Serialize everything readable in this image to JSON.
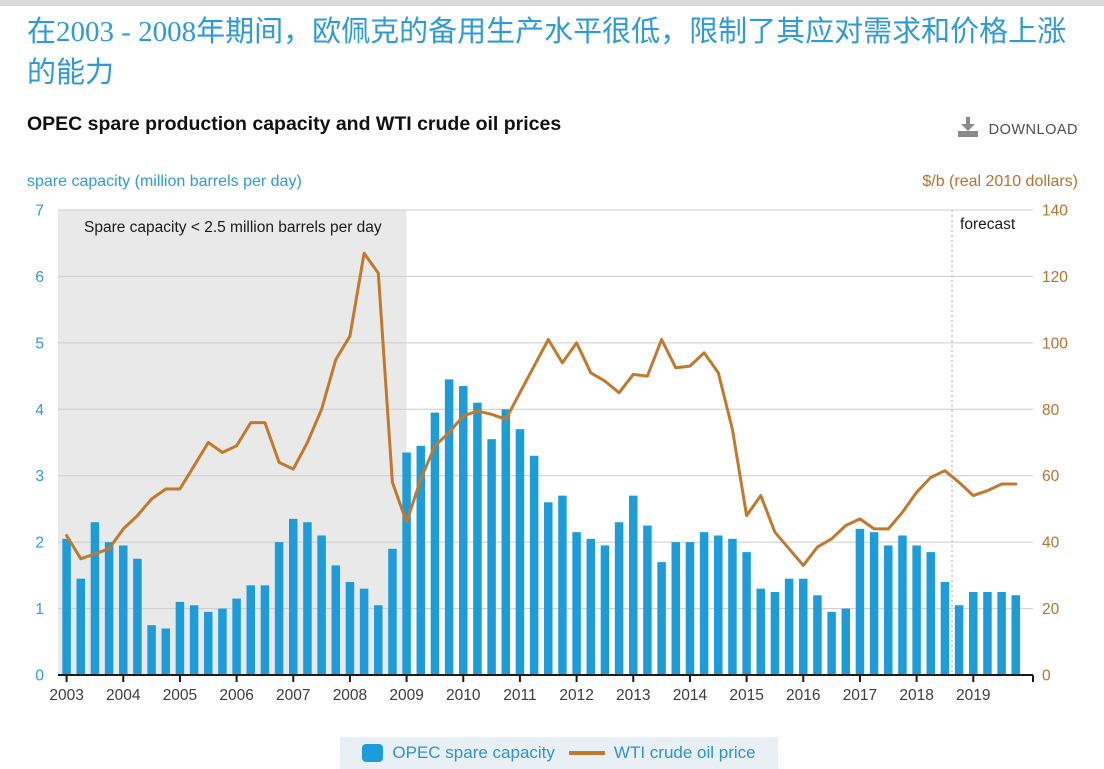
{
  "page": {
    "title_zh": "在2003 - 2008年期间，欧佩克的备用生产水平很低，限制了其应对需求和价格上涨的能力",
    "subtitle": "OPEC spare production capacity and WTI crude oil prices",
    "download_label": "DOWNLOAD"
  },
  "axes": {
    "left_title": "spare capacity (million barrels per day)",
    "right_title": "$/b (real 2010 dollars)",
    "left_ticks": [
      0,
      1,
      2,
      3,
      4,
      5,
      6,
      7
    ],
    "right_ticks": [
      0,
      20,
      40,
      60,
      80,
      100,
      120,
      140
    ]
  },
  "annotations": {
    "shaded_label": "Spare capacity < 2.5 million barrels per day",
    "forecast_label": "forecast"
  },
  "legend": [
    {
      "label": "OPEC spare capacity",
      "swatch": "square",
      "color": "#1c9dd9"
    },
    {
      "label": "WTI crude oil price",
      "swatch": "line",
      "color": "#c17a2d"
    }
  ],
  "colors": {
    "bar": "#1c9dd9",
    "line": "#c17a2d",
    "left_axis_text": "#2e9bd6",
    "right_axis_text": "#b4732e",
    "gridline": "#cccccc",
    "shade": "#e9e9e9",
    "axis": "#1a1a1a",
    "x_labels": "#3d3d3d",
    "forecast_divider": "#aaaaaa",
    "annotation_text": "#1a1a1a"
  },
  "chart_data": {
    "type": "bar",
    "title": "OPEC spare production capacity and WTI crude oil prices",
    "frequency": "quarterly",
    "start": "2003-Q1",
    "end": "2019-Q4",
    "years": [
      "2003",
      "2004",
      "2005",
      "2006",
      "2007",
      "2008",
      "2009",
      "2010",
      "2011",
      "2012",
      "2013",
      "2014",
      "2015",
      "2016",
      "2017",
      "2018",
      "2019"
    ],
    "left_ylim": [
      0,
      7
    ],
    "right_ylim": [
      0,
      140
    ],
    "left_ylabel": "spare capacity (million barrels per day)",
    "right_ylabel": "$/b (real 2010 dollars)",
    "shaded_region": {
      "from": "2003-Q1",
      "to": "2009-Q1",
      "label": "Spare capacity < 2.5 million barrels per day"
    },
    "forecast_start": "2018-Q4",
    "legend_position": "bottom",
    "grid": "horizontal",
    "series": [
      {
        "name": "OPEC spare capacity",
        "type": "bar",
        "axis": "left",
        "units": "million barrels per day",
        "values": [
          2.05,
          1.45,
          2.3,
          2.0,
          1.95,
          1.75,
          0.75,
          0.7,
          1.1,
          1.05,
          0.95,
          1.0,
          1.15,
          1.35,
          1.35,
          2.0,
          2.35,
          2.3,
          2.1,
          1.65,
          1.4,
          1.3,
          1.05,
          1.9,
          3.35,
          3.45,
          3.95,
          4.45,
          4.35,
          4.1,
          3.55,
          4.0,
          3.7,
          3.3,
          2.6,
          2.7,
          2.15,
          2.05,
          1.95,
          2.3,
          2.7,
          2.25,
          1.7,
          2.0,
          2.0,
          2.15,
          2.1,
          2.05,
          1.85,
          1.3,
          1.25,
          1.45,
          1.45,
          1.2,
          0.95,
          1.0,
          2.2,
          2.15,
          1.95,
          2.1,
          1.95,
          1.85,
          1.4,
          1.05,
          1.25,
          1.25,
          1.25,
          1.2
        ]
      },
      {
        "name": "WTI crude oil price",
        "type": "line",
        "axis": "right",
        "units": "$/b (real 2010 dollars)",
        "values": [
          42,
          35,
          36.5,
          38,
          44,
          48,
          53,
          56,
          56,
          63,
          70,
          67,
          69,
          76,
          76,
          64,
          62,
          70,
          80,
          95,
          102,
          127,
          121,
          58,
          46,
          59,
          69,
          73,
          78,
          79.5,
          78.5,
          77,
          85,
          93,
          101,
          94,
          100,
          91,
          88.5,
          85,
          90.5,
          90,
          101,
          92.5,
          93,
          97,
          91,
          74,
          48,
          54,
          43,
          38,
          33,
          38.5,
          41,
          45,
          47,
          44,
          44,
          49,
          55,
          59.5,
          61.5,
          58,
          54,
          55.5,
          57.5,
          57.5
        ]
      }
    ]
  }
}
